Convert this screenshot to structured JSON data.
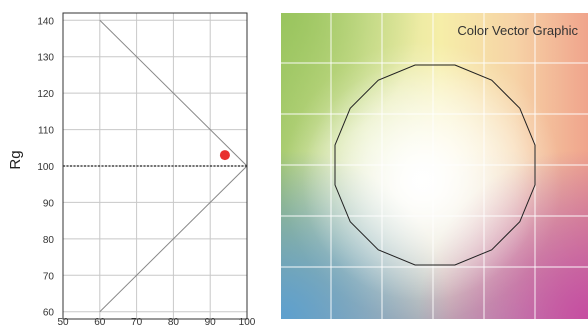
{
  "chart_data": [
    {
      "type": "scatter",
      "ylabel": "Rg",
      "xlabel": "",
      "xlim": [
        50,
        100
      ],
      "ylim": [
        58,
        142
      ],
      "x_ticks": [
        50,
        60,
        70,
        80,
        90,
        100
      ],
      "y_ticks": [
        60,
        70,
        80,
        90,
        100,
        110,
        120,
        130,
        140
      ],
      "grid": true,
      "reference_lines": [
        {
          "from": [
            60,
            140
          ],
          "to": [
            100,
            100
          ]
        },
        {
          "from": [
            100,
            100
          ],
          "to": [
            60,
            60
          ]
        }
      ],
      "hline": {
        "y": 100,
        "style": "dashed"
      },
      "points": [
        {
          "x": 94,
          "y": 103,
          "color": "#e8302e"
        }
      ]
    },
    {
      "type": "vectorscope",
      "title": "Color Vector Graphic"
    }
  ]
}
